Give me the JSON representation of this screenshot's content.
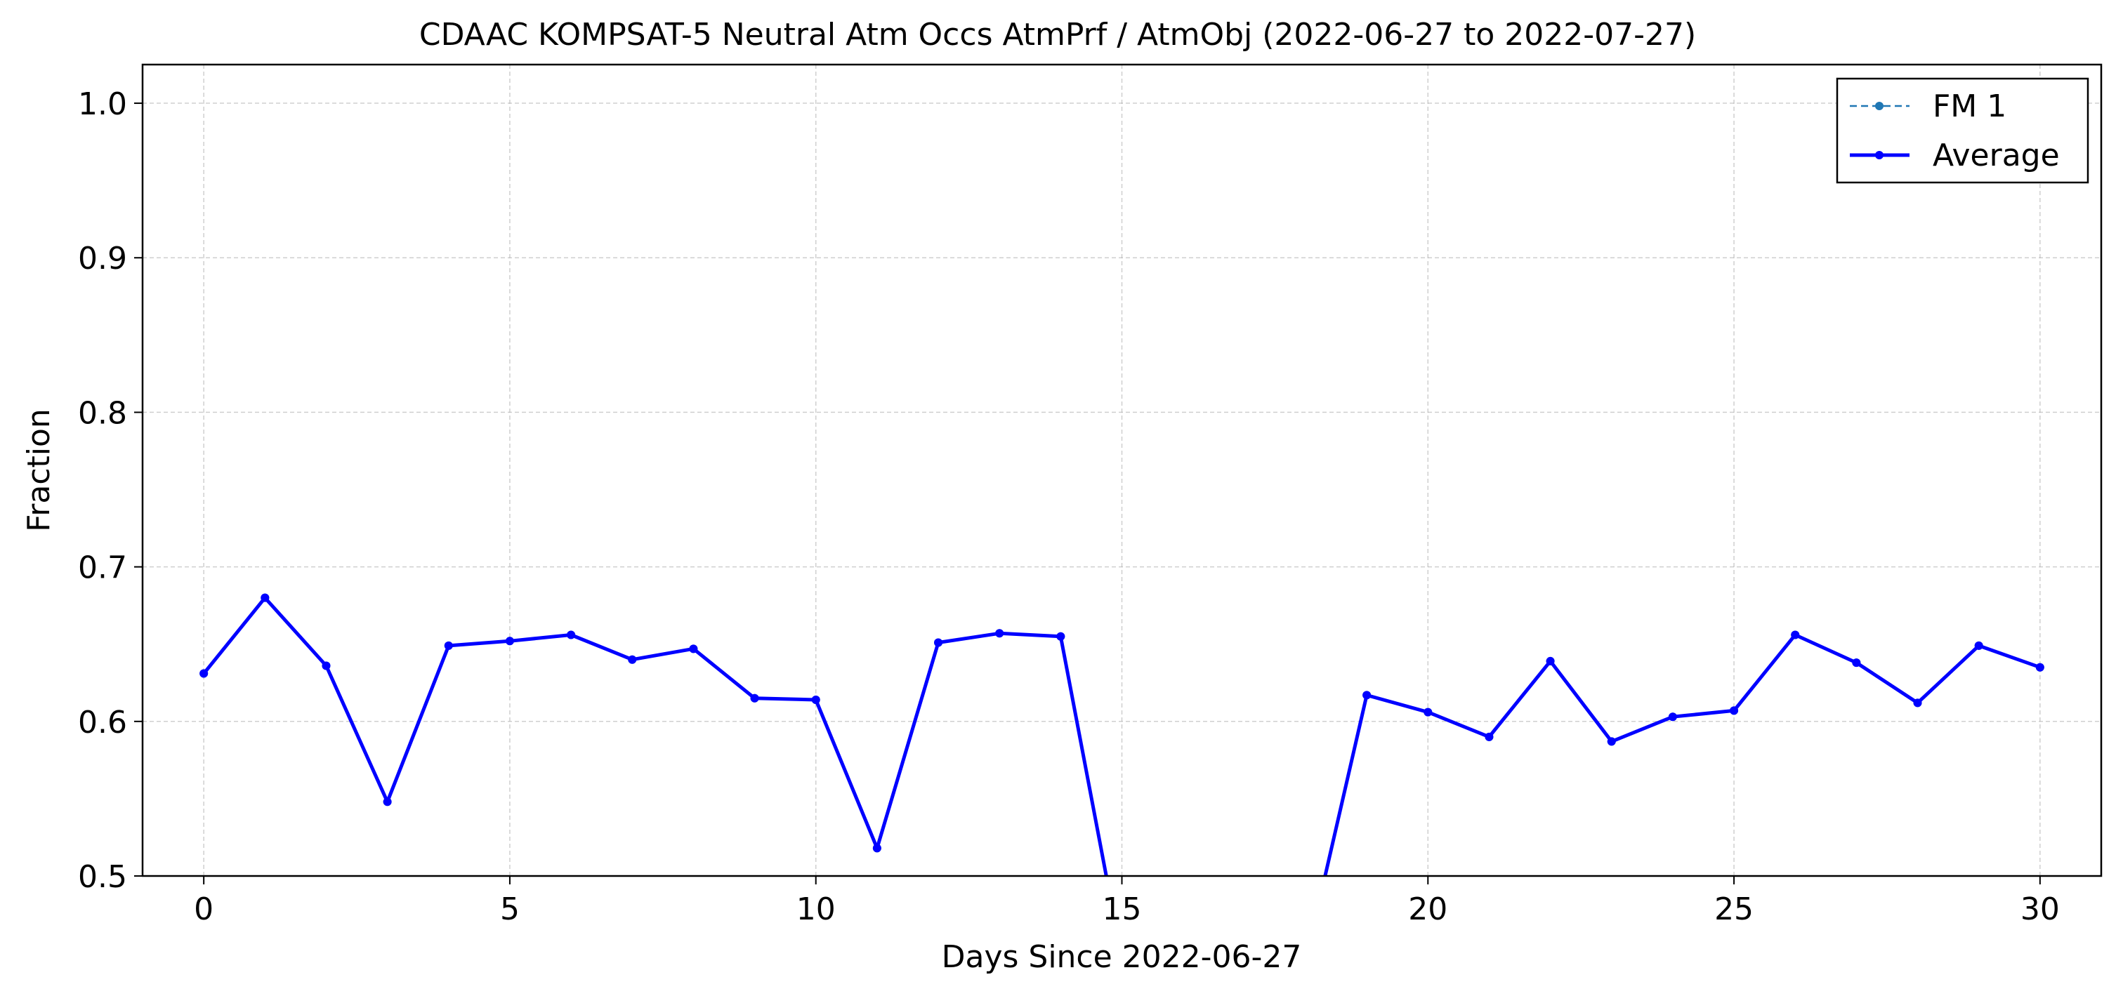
{
  "chart_data": {
    "type": "line",
    "title": "CDAAC KOMPSAT-5 Neutral Atm Occs AtmPrf / AtmObj (2022-06-27 to 2022-07-27)",
    "xlabel": "Days Since 2022-06-27",
    "ylabel": "Fraction",
    "xlim": [
      -1,
      31
    ],
    "ylim": [
      0.5,
      1.025
    ],
    "xticks": [
      0,
      5,
      10,
      15,
      20,
      25,
      30
    ],
    "yticks": [
      0.5,
      0.6,
      0.7,
      0.8,
      0.9,
      1.0
    ],
    "ytick_labels": [
      "0.5",
      "0.6",
      "0.7",
      "0.8",
      "0.9",
      "1.0"
    ],
    "grid": true,
    "legend_position": "top-right",
    "x": [
      0,
      1,
      2,
      3,
      4,
      5,
      6,
      7,
      8,
      9,
      10,
      11,
      12,
      13,
      14,
      15,
      16,
      17,
      18,
      19,
      20,
      21,
      22,
      23,
      24,
      25,
      26,
      27,
      28,
      29,
      30
    ],
    "series": [
      {
        "name": "FM 1",
        "color": "#1f77b4",
        "style": "dashed",
        "values": [
          0.631,
          0.68,
          0.636,
          0.548,
          0.649,
          0.652,
          0.656,
          0.64,
          0.647,
          0.615,
          0.614,
          0.518,
          0.651,
          0.657,
          0.655,
          0.447,
          null,
          null,
          0.445,
          0.617,
          0.606,
          0.59,
          0.639,
          0.587,
          0.603,
          0.607,
          0.656,
          0.638,
          0.612,
          0.649,
          0.635
        ]
      },
      {
        "name": "Average",
        "color": "#0000ff",
        "style": "solid",
        "values": [
          0.631,
          0.68,
          0.636,
          0.548,
          0.649,
          0.652,
          0.656,
          0.64,
          0.647,
          0.615,
          0.614,
          0.518,
          0.651,
          0.657,
          0.655,
          0.447,
          null,
          null,
          0.445,
          0.617,
          0.606,
          0.59,
          0.639,
          0.587,
          0.603,
          0.607,
          0.656,
          0.638,
          0.612,
          0.649,
          0.635
        ]
      }
    ]
  }
}
